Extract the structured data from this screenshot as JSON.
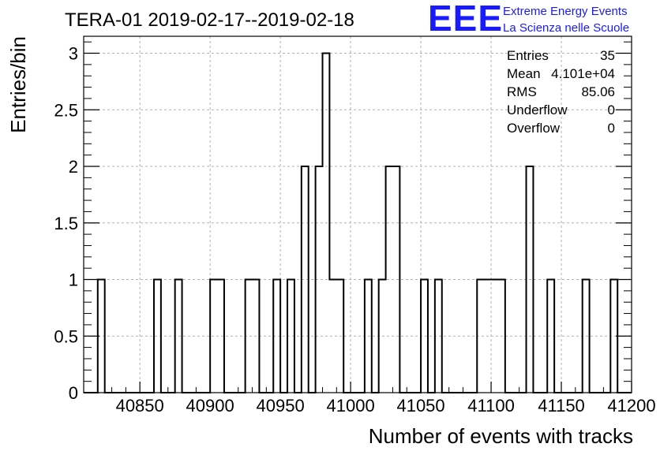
{
  "chart_data": {
    "type": "bar",
    "title": "TERA-01 2019-02-17--2019-02-18",
    "xlabel": "Number of events with tracks",
    "ylabel": "Entries/bin",
    "xlim": [
      40810,
      41200
    ],
    "ylim": [
      0,
      3.15
    ],
    "bin_width": 5,
    "grid": true,
    "x_ticks": [
      40850,
      40900,
      40950,
      41000,
      41050,
      41100,
      41150,
      41200
    ],
    "x_tick_labels": [
      "40850",
      "40900",
      "40950",
      "41000",
      "41050",
      "41100",
      "41150",
      "41200"
    ],
    "y_ticks": [
      0,
      0.5,
      1,
      1.5,
      2,
      2.5,
      3
    ],
    "y_tick_labels": [
      "0",
      "0.5",
      "1",
      "1.5",
      "2",
      "2.5",
      "3"
    ],
    "bins": [
      {
        "x": 40820,
        "value": 1
      },
      {
        "x": 40860,
        "value": 1
      },
      {
        "x": 40875,
        "value": 1
      },
      {
        "x": 40900,
        "value": 1
      },
      {
        "x": 40905,
        "value": 1
      },
      {
        "x": 40925,
        "value": 1
      },
      {
        "x": 40930,
        "value": 1
      },
      {
        "x": 40945,
        "value": 1
      },
      {
        "x": 40955,
        "value": 1
      },
      {
        "x": 40965,
        "value": 2
      },
      {
        "x": 40975,
        "value": 2
      },
      {
        "x": 40980,
        "value": 3
      },
      {
        "x": 40985,
        "value": 1
      },
      {
        "x": 40990,
        "value": 1
      },
      {
        "x": 41010,
        "value": 1
      },
      {
        "x": 41020,
        "value": 1
      },
      {
        "x": 41025,
        "value": 2
      },
      {
        "x": 41030,
        "value": 2
      },
      {
        "x": 41050,
        "value": 1
      },
      {
        "x": 41060,
        "value": 1
      },
      {
        "x": 41090,
        "value": 1
      },
      {
        "x": 41095,
        "value": 1
      },
      {
        "x": 41100,
        "value": 1
      },
      {
        "x": 41105,
        "value": 1
      },
      {
        "x": 41125,
        "value": 2
      },
      {
        "x": 41140,
        "value": 1
      },
      {
        "x": 41165,
        "value": 1
      },
      {
        "x": 41185,
        "value": 1
      }
    ],
    "stats": [
      {
        "label": "Entries",
        "value": "35"
      },
      {
        "label": "Mean",
        "value": "4.101e+04"
      },
      {
        "label": "RMS",
        "value": "85.06"
      },
      {
        "label": "Underflow",
        "value": "0"
      },
      {
        "label": "Overflow",
        "value": "0"
      }
    ]
  },
  "logo": {
    "mark": "EEE",
    "line1": "Extreme Energy Events",
    "line2": "La Scienza nelle Scuole",
    "color": "#1a1aff"
  }
}
